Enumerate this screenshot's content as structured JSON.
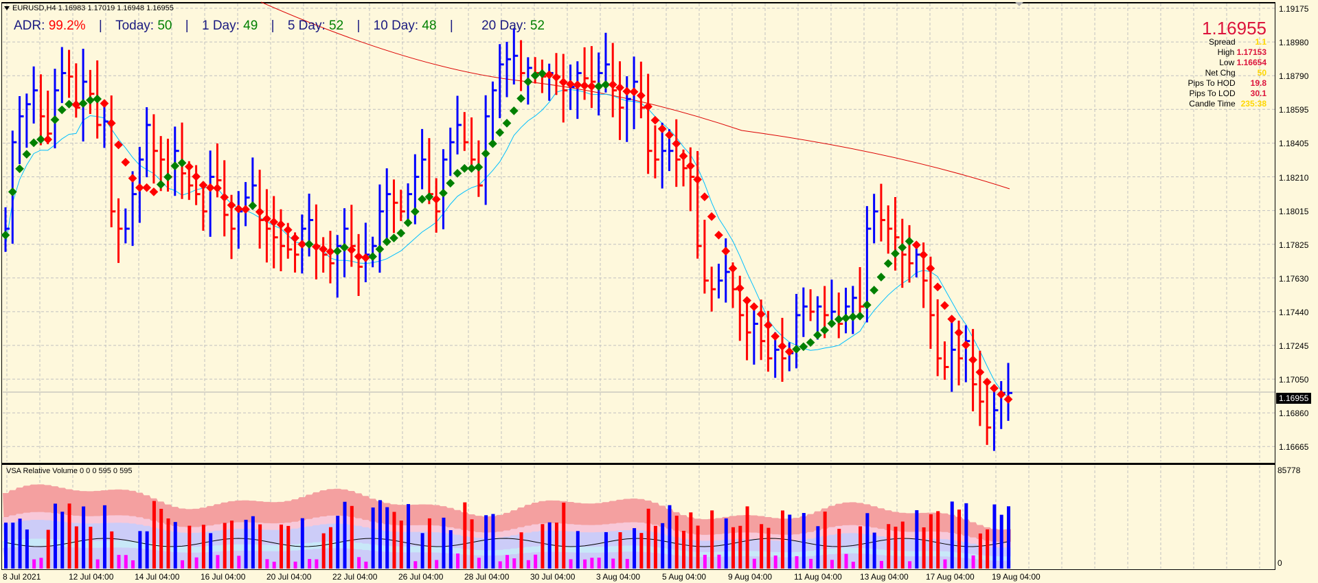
{
  "header": {
    "symbol_line": "EURUSD,H4  1.16983 1.17019 1.16948 1.16955",
    "adr": {
      "adr_label": "ADR:",
      "adr_value": "99.2%",
      "today_label": "Today:",
      "today_value": "50",
      "d1_label": "1 Day:",
      "d1_value": "49",
      "d5_label": "5 Day:",
      "d5_value": "52",
      "d10_label": "10 Day:",
      "d10_value": "48",
      "d20_label": "20 Day:",
      "d20_value": "52",
      "separator": "|"
    }
  },
  "info_panel": {
    "price": "1.16955",
    "rows": [
      {
        "label": "Spread",
        "value": "1.1",
        "color": "gold"
      },
      {
        "label": "High",
        "value": "1.17153",
        "color": "red"
      },
      {
        "label": "Low",
        "value": "1.16654",
        "color": "red"
      },
      {
        "label": "Net Chg",
        "value": "50",
        "color": "gold"
      },
      {
        "label": "Pips To HOD",
        "value": "19.8",
        "color": "red"
      },
      {
        "label": "Pips To LOD",
        "value": "30.1",
        "color": "red"
      },
      {
        "label": "Candle Time",
        "value": "235:38",
        "color": "gold"
      }
    ]
  },
  "price_axis": [
    "1.19175",
    "1.18980",
    "1.18790",
    "1.18595",
    "1.18405",
    "1.18210",
    "1.18015",
    "1.17825",
    "1.17630",
    "1.17440",
    "1.17245",
    "1.17050",
    "1.16860",
    "1.16665"
  ],
  "current_price_tag": "1.16955",
  "volume_panel": {
    "title": "VSA Relative Volume 0 0 0 595 0 595",
    "axis_max": "85778",
    "axis_min": "0"
  },
  "time_axis": [
    "8 Jul 2021",
    "12 Jul 04:00",
    "14 Jul 04:00",
    "16 Jul 04:00",
    "20 Jul 04:00",
    "22 Jul 04:00",
    "26 Jul 04:00",
    "28 Jul 04:00",
    "30 Jul 04:00",
    "3 Aug 04:00",
    "5 Aug 04:00",
    "9 Aug 04:00",
    "11 Aug 04:00",
    "13 Aug 04:00",
    "17 Aug 04:00",
    "19 Aug 04:00"
  ],
  "colors": {
    "background": "#fef8dc",
    "grid": "#c0c0c0",
    "bull_bar": "#0000ff",
    "bear_bar": "#ff0000",
    "dots_up": "#008000",
    "dots_down": "#ff0000",
    "ma_fast": "#00bfff",
    "ma_slow": "#dc0000",
    "vol_band_top": "#f4a0a0",
    "vol_band_mid": "#f8c8d8",
    "vol_band_low": "#ccccf8",
    "vol_band_base": "#c8e8f8",
    "vol_magenta": "#ff00ff"
  },
  "chart_data": {
    "type": "ohlc",
    "title": "EURUSD,H4",
    "ylim": [
      1.1655,
      1.192
    ],
    "close_path": [
      1.179,
      1.184,
      1.1855,
      1.1862,
      1.187,
      1.1855,
      1.1845,
      1.187,
      1.188,
      1.1878,
      1.186,
      1.1875,
      1.1868,
      1.185,
      1.1852,
      1.18,
      1.179,
      1.179,
      1.181,
      1.183,
      1.185,
      1.1835,
      1.183,
      1.182,
      1.1835,
      1.1822,
      1.1815,
      1.181,
      1.18,
      1.182,
      1.1818,
      1.1798,
      1.179,
      1.18,
      1.1808,
      1.1815,
      1.1795,
      1.179,
      1.1785,
      1.178,
      1.1778,
      1.1775,
      1.179,
      1.1795,
      1.178,
      1.1775,
      1.177,
      1.178,
      1.179,
      1.178,
      1.1768,
      1.1775,
      1.178,
      1.18,
      1.181,
      1.1805,
      1.18,
      1.181,
      1.182,
      1.183,
      1.181,
      1.18,
      1.183,
      1.184,
      1.185,
      1.184,
      1.183,
      1.1815,
      1.1855,
      1.187,
      1.1885,
      1.1888,
      1.189,
      1.188,
      1.1883,
      1.188,
      1.1878,
      1.188,
      1.1878,
      1.187,
      1.1872,
      1.188,
      1.1877,
      1.1875,
      1.188,
      1.1885,
      1.187,
      1.186,
      1.1865,
      1.1875,
      1.186,
      1.1835,
      1.183,
      1.1835,
      1.1835,
      1.183,
      1.1825,
      1.182,
      1.178,
      1.176,
      1.1755,
      1.176,
      1.1765,
      1.1755,
      1.174,
      1.173,
      1.1735,
      1.1725,
      1.1715,
      1.172,
      1.1715,
      1.1718,
      1.174,
      1.1745,
      1.1742,
      1.1745,
      1.174,
      1.1742,
      1.1735,
      1.1745,
      1.175,
      1.1745,
      1.179,
      1.18,
      1.1795,
      1.179,
      1.1785,
      1.1775,
      1.177,
      1.1775,
      1.176,
      1.174,
      1.1715,
      1.171,
      1.172,
      1.1715,
      1.1725,
      1.17,
      1.169,
      1.1675,
      1.1685,
      1.1695,
      1.1695
    ],
    "ma_slow_endpoints": {
      "start": [
        380,
        3
      ],
      "mid": [
        1080,
        120
      ],
      "end": [
        1470,
        275
      ]
    },
    "series_notes": "H4 bar chart (blue=bullish, red=bearish) with green/red trend dots, fast MA (cyan) and slow MA (red)."
  }
}
